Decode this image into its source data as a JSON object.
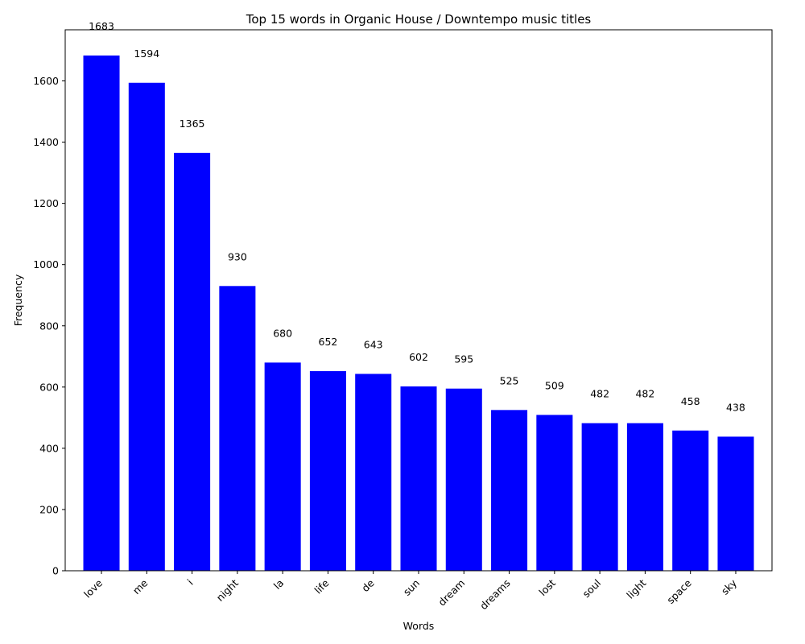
{
  "chart_data": {
    "type": "bar",
    "title": "Top 15 words in Organic House / Downtempo music titles",
    "xlabel": "Words",
    "ylabel": "Frequency",
    "categories": [
      "love",
      "me",
      "i",
      "night",
      "la",
      "life",
      "de",
      "sun",
      "dream",
      "dreams",
      "lost",
      "soul",
      "light",
      "space",
      "sky"
    ],
    "values": [
      1683,
      1594,
      1365,
      930,
      680,
      652,
      643,
      602,
      595,
      525,
      509,
      482,
      482,
      458,
      438
    ],
    "ylim": [
      0,
      1767
    ],
    "yticks": [
      0,
      200,
      400,
      600,
      800,
      1000,
      1200,
      1400,
      1600
    ],
    "bar_color": "#0000ff",
    "grid": false,
    "legend": "none"
  }
}
